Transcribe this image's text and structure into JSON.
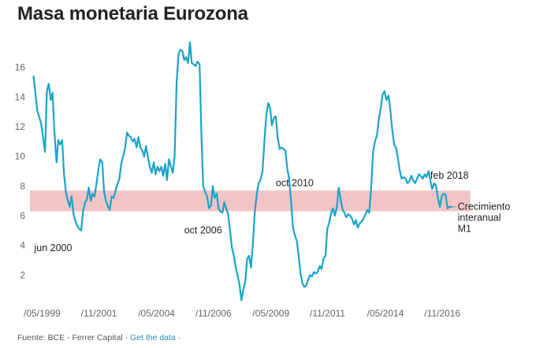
{
  "title": "Masa monetaria Eurozona",
  "footer": {
    "source": "Fuente: BCE - Ferrer Capital",
    "separator": "·",
    "link": "Get the data",
    "trailing": "·"
  },
  "colors": {
    "line": "#1aa3c9",
    "band": "#f2c4c6",
    "text": "#333333",
    "axis": "#666666"
  },
  "chart_data": {
    "type": "line",
    "title": "Masa monetaria Eurozona",
    "ylim": [
      0,
      18
    ],
    "yticks": [
      2,
      4,
      6,
      8,
      10,
      12,
      14,
      16
    ],
    "xlim": [
      1999.33,
      2018.75
    ],
    "xticks": [
      {
        "x": 1999.33,
        "label": "/05/1999"
      },
      {
        "x": 2001.83,
        "label": "/11/2001"
      },
      {
        "x": 2004.33,
        "label": "/05/2004"
      },
      {
        "x": 2006.83,
        "label": "/11/2006"
      },
      {
        "x": 2009.33,
        "label": "/05/2009"
      },
      {
        "x": 2011.83,
        "label": "/11/2011"
      },
      {
        "x": 2014.33,
        "label": "/05/2014"
      },
      {
        "x": 2016.83,
        "label": "/11/2016"
      }
    ],
    "band": {
      "from": 6.3,
      "to": 7.7,
      "x_from": 1999.33,
      "x_to": 2018.5
    },
    "series": [
      {
        "name": "Crecimiento interanual M1",
        "points": [
          [
            1999.42,
            15.4
          ],
          [
            1999.58,
            13.1
          ],
          [
            1999.75,
            12.2
          ],
          [
            1999.92,
            10.3
          ],
          [
            2000.0,
            14.4
          ],
          [
            2000.08,
            14.9
          ],
          [
            2000.17,
            13.8
          ],
          [
            2000.25,
            14.3
          ],
          [
            2000.33,
            11.7
          ],
          [
            2000.42,
            9.6
          ],
          [
            2000.5,
            11.1
          ],
          [
            2000.58,
            10.8
          ],
          [
            2000.67,
            11.1
          ],
          [
            2000.75,
            8.8
          ],
          [
            2000.83,
            7.6
          ],
          [
            2000.92,
            7.0
          ],
          [
            2001.0,
            6.6
          ],
          [
            2001.08,
            7.3
          ],
          [
            2001.17,
            6.1
          ],
          [
            2001.25,
            5.6
          ],
          [
            2001.33,
            5.3
          ],
          [
            2001.42,
            5.1
          ],
          [
            2001.5,
            5.0
          ],
          [
            2001.58,
            6.3
          ],
          [
            2001.67,
            6.9
          ],
          [
            2001.75,
            7.1
          ],
          [
            2001.83,
            7.9
          ],
          [
            2001.92,
            7.0
          ],
          [
            2002.0,
            7.5
          ],
          [
            2002.08,
            7.3
          ],
          [
            2002.17,
            8.2
          ],
          [
            2002.25,
            9.1
          ],
          [
            2002.33,
            9.8
          ],
          [
            2002.42,
            9.6
          ],
          [
            2002.5,
            7.6
          ],
          [
            2002.58,
            7.0
          ],
          [
            2002.67,
            6.6
          ],
          [
            2002.75,
            6.4
          ],
          [
            2002.83,
            7.3
          ],
          [
            2002.92,
            7.2
          ],
          [
            2003.0,
            7.7
          ],
          [
            2003.08,
            8.1
          ],
          [
            2003.17,
            8.5
          ],
          [
            2003.25,
            9.5
          ],
          [
            2003.33,
            10.0
          ],
          [
            2003.42,
            10.6
          ],
          [
            2003.5,
            11.6
          ],
          [
            2003.58,
            11.4
          ],
          [
            2003.67,
            11.3
          ],
          [
            2003.75,
            11.0
          ],
          [
            2003.83,
            11.2
          ],
          [
            2003.92,
            10.6
          ],
          [
            2004.0,
            11.3
          ],
          [
            2004.08,
            10.6
          ],
          [
            2004.17,
            10.4
          ],
          [
            2004.25,
            10.0
          ],
          [
            2004.33,
            10.7
          ],
          [
            2004.42,
            9.9
          ],
          [
            2004.5,
            9.3
          ],
          [
            2004.58,
            8.9
          ],
          [
            2004.67,
            9.6
          ],
          [
            2004.75,
            8.8
          ],
          [
            2004.83,
            9.3
          ],
          [
            2004.92,
            9.0
          ],
          [
            2005.0,
            9.3
          ],
          [
            2005.08,
            8.7
          ],
          [
            2005.17,
            9.5
          ],
          [
            2005.25,
            8.4
          ],
          [
            2005.33,
            9.8
          ],
          [
            2005.42,
            9.3
          ],
          [
            2005.5,
            8.9
          ],
          [
            2005.58,
            10.0
          ],
          [
            2005.67,
            15.0
          ],
          [
            2005.75,
            16.9
          ],
          [
            2005.83,
            17.2
          ],
          [
            2005.92,
            17.1
          ],
          [
            2006.0,
            16.5
          ],
          [
            2006.08,
            16.7
          ],
          [
            2006.17,
            16.3
          ],
          [
            2006.25,
            17.7
          ],
          [
            2006.33,
            16.3
          ],
          [
            2006.42,
            16.2
          ],
          [
            2006.5,
            16.1
          ],
          [
            2006.58,
            16.4
          ],
          [
            2006.67,
            16.2
          ],
          [
            2006.75,
            11.5
          ],
          [
            2006.83,
            8.0
          ],
          [
            2006.92,
            7.6
          ],
          [
            2007.0,
            7.3
          ],
          [
            2007.08,
            6.5
          ],
          [
            2007.17,
            6.7
          ],
          [
            2007.25,
            8.0
          ],
          [
            2007.33,
            7.2
          ],
          [
            2007.42,
            7.5
          ],
          [
            2007.5,
            6.5
          ],
          [
            2007.58,
            6.3
          ],
          [
            2007.67,
            6.2
          ],
          [
            2007.75,
            6.9
          ],
          [
            2007.83,
            6.5
          ],
          [
            2007.92,
            6.1
          ],
          [
            2008.0,
            5.0
          ],
          [
            2008.08,
            3.9
          ],
          [
            2008.17,
            3.3
          ],
          [
            2008.25,
            2.5
          ],
          [
            2008.33,
            2.0
          ],
          [
            2008.42,
            1.3
          ],
          [
            2008.5,
            0.3
          ],
          [
            2008.58,
            1.0
          ],
          [
            2008.67,
            1.6
          ],
          [
            2008.75,
            3.1
          ],
          [
            2008.83,
            3.3
          ],
          [
            2008.92,
            2.5
          ],
          [
            2009.0,
            4.1
          ],
          [
            2009.08,
            6.2
          ],
          [
            2009.17,
            7.5
          ],
          [
            2009.25,
            8.2
          ],
          [
            2009.33,
            8.4
          ],
          [
            2009.42,
            9.0
          ],
          [
            2009.5,
            11.0
          ],
          [
            2009.58,
            12.7
          ],
          [
            2009.67,
            13.6
          ],
          [
            2009.75,
            13.3
          ],
          [
            2009.83,
            12.1
          ],
          [
            2009.92,
            12.6
          ],
          [
            2010.0,
            12.7
          ],
          [
            2010.08,
            11.3
          ],
          [
            2010.17,
            10.5
          ],
          [
            2010.25,
            10.6
          ],
          [
            2010.33,
            10.5
          ],
          [
            2010.42,
            10.4
          ],
          [
            2010.5,
            9.2
          ],
          [
            2010.58,
            8.5
          ],
          [
            2010.67,
            7.0
          ],
          [
            2010.75,
            5.2
          ],
          [
            2010.83,
            4.7
          ],
          [
            2010.92,
            4.3
          ],
          [
            2011.0,
            3.3
          ],
          [
            2011.08,
            2.1
          ],
          [
            2011.17,
            1.4
          ],
          [
            2011.25,
            1.2
          ],
          [
            2011.33,
            1.3
          ],
          [
            2011.42,
            1.7
          ],
          [
            2011.5,
            2.0
          ],
          [
            2011.58,
            1.9
          ],
          [
            2011.67,
            2.2
          ],
          [
            2011.75,
            2.1
          ],
          [
            2011.83,
            2.2
          ],
          [
            2011.92,
            2.6
          ],
          [
            2012.0,
            2.4
          ],
          [
            2012.08,
            3.1
          ],
          [
            2012.17,
            3.3
          ],
          [
            2012.25,
            5.1
          ],
          [
            2012.33,
            5.5
          ],
          [
            2012.42,
            6.2
          ],
          [
            2012.5,
            6.5
          ],
          [
            2012.58,
            6.0
          ],
          [
            2012.67,
            6.6
          ],
          [
            2012.75,
            7.9
          ],
          [
            2012.83,
            7.1
          ],
          [
            2012.92,
            6.4
          ],
          [
            2013.0,
            6.2
          ],
          [
            2013.08,
            5.9
          ],
          [
            2013.17,
            6.1
          ],
          [
            2013.25,
            6.0
          ],
          [
            2013.33,
            5.8
          ],
          [
            2013.42,
            5.4
          ],
          [
            2013.5,
            5.7
          ],
          [
            2013.58,
            5.2
          ],
          [
            2013.67,
            5.5
          ],
          [
            2013.75,
            5.6
          ],
          [
            2013.83,
            5.8
          ],
          [
            2013.92,
            6.1
          ],
          [
            2014.0,
            6.4
          ],
          [
            2014.08,
            6.2
          ],
          [
            2014.17,
            8.0
          ],
          [
            2014.25,
            10.3
          ],
          [
            2014.33,
            11.0
          ],
          [
            2014.42,
            11.4
          ],
          [
            2014.5,
            12.5
          ],
          [
            2014.58,
            13.2
          ],
          [
            2014.67,
            14.2
          ],
          [
            2014.75,
            14.4
          ],
          [
            2014.83,
            13.8
          ],
          [
            2014.92,
            14.1
          ],
          [
            2015.0,
            13.2
          ],
          [
            2015.08,
            11.9
          ],
          [
            2015.17,
            10.8
          ],
          [
            2015.25,
            10.6
          ],
          [
            2015.33,
            9.9
          ],
          [
            2015.42,
            9.0
          ],
          [
            2015.5,
            8.5
          ],
          [
            2015.58,
            8.6
          ],
          [
            2015.67,
            8.5
          ],
          [
            2015.75,
            8.2
          ],
          [
            2015.83,
            8.3
          ],
          [
            2015.92,
            8.7
          ],
          [
            2016.0,
            8.4
          ],
          [
            2016.08,
            8.2
          ],
          [
            2016.17,
            8.5
          ],
          [
            2016.25,
            8.8
          ],
          [
            2016.33,
            8.7
          ],
          [
            2016.42,
            8.5
          ],
          [
            2016.5,
            8.8
          ],
          [
            2016.58,
            8.6
          ],
          [
            2016.67,
            9.0
          ],
          [
            2016.75,
            8.4
          ],
          [
            2016.83,
            7.8
          ],
          [
            2016.92,
            8.2
          ],
          [
            2017.0,
            8.0
          ],
          [
            2017.08,
            7.2
          ],
          [
            2017.17,
            6.6
          ],
          [
            2017.25,
            7.3
          ],
          [
            2017.33,
            7.5
          ],
          [
            2017.42,
            7.4
          ],
          [
            2017.5,
            6.5
          ],
          [
            2017.58,
            6.6
          ],
          [
            2017.67,
            6.6
          ]
        ]
      }
    ],
    "annotations": [
      {
        "text": "jun 2000",
        "x": 1999.45,
        "y": 3.6
      },
      {
        "text": "oct 2006",
        "x": 2006.0,
        "y": 4.8
      },
      {
        "text": "oct 2010",
        "x": 2010.0,
        "y": 8.0
      },
      {
        "text": "feb 2018",
        "x": 2016.75,
        "y": 8.5
      }
    ],
    "series_label_lines": [
      "Crecimiento",
      "interanual",
      "M1"
    ]
  }
}
